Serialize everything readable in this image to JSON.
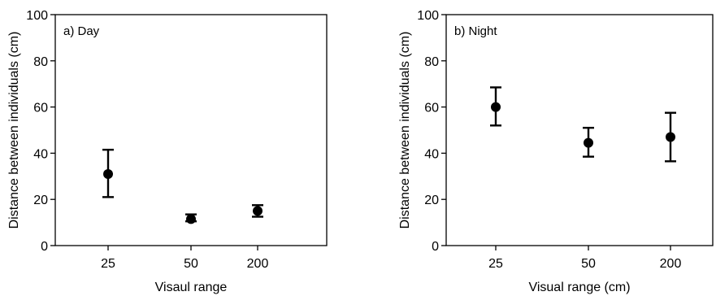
{
  "chart_data": [
    {
      "type": "scatter",
      "panel_label": "a) Day",
      "xlabel": "Visaul range",
      "ylabel": "Distance between individuals (cm)",
      "categories": [
        "25",
        "50",
        "200"
      ],
      "ylim": [
        0,
        100
      ],
      "yticks": [
        0,
        20,
        40,
        60,
        80,
        100
      ],
      "series": [
        {
          "values": [
            31,
            11.5,
            15
          ],
          "err_low": [
            21,
            10.5,
            12.5
          ],
          "err_high": [
            41.5,
            13.5,
            17.5
          ]
        }
      ],
      "grid": false,
      "legend": "none"
    },
    {
      "type": "scatter",
      "panel_label": "b) Night",
      "xlabel": "Visual range (cm)",
      "ylabel": "Distance between individuals (cm)",
      "categories": [
        "25",
        "50",
        "200"
      ],
      "ylim": [
        0,
        100
      ],
      "yticks": [
        0,
        20,
        40,
        60,
        80,
        100
      ],
      "series": [
        {
          "values": [
            60,
            44.5,
            47
          ],
          "err_low": [
            52,
            38.5,
            36.5
          ],
          "err_high": [
            68.5,
            51,
            57.5
          ]
        }
      ],
      "grid": false,
      "legend": "none"
    }
  ]
}
